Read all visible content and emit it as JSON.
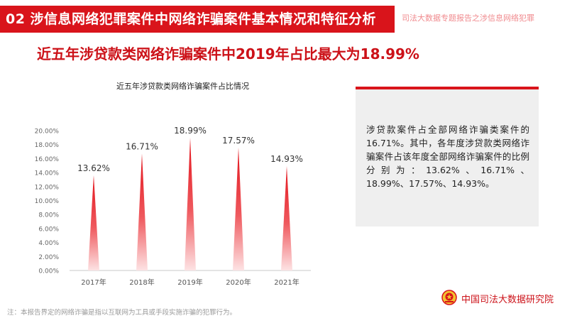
{
  "header": {
    "title": "02  涉信息网络犯罪案件中网络诈骗案件基本情况和特征分析",
    "subtitle": "司法大数据专题报告之涉信息网络犯罪"
  },
  "headline": "近五年涉贷款类网络诈骗案件中2019年占比最大为18.99%",
  "chart_data": {
    "type": "bar",
    "title": "近五年涉贷款类网络诈骗案件占比情况",
    "categories": [
      "2017年",
      "2018年",
      "2019年",
      "2020年",
      "2021年"
    ],
    "values": [
      13.62,
      16.71,
      18.99,
      17.57,
      14.93
    ],
    "data_labels": [
      "13.62%",
      "16.71%",
      "18.99%",
      "17.57%",
      "14.93%"
    ],
    "ylim": [
      0,
      20
    ],
    "yticks": [
      "0.00%",
      "2.00%",
      "4.00%",
      "6.00%",
      "8.00%",
      "10.00%",
      "12.00%",
      "14.00%",
      "16.00%",
      "18.00%",
      "20.00%"
    ],
    "grid": false,
    "bar_color": "#e3141c"
  },
  "info": {
    "text": "涉贷款案件占全部网络诈骗类案件的16.71%。其中，各年度涉贷款类网络诈骗案件占该年度全部网络诈骗案件的比例分别为：13.62%、16.71%、18.99%、17.57%、14.93%。"
  },
  "footer": {
    "org": "中国司法大数据研究院",
    "note": "注：本报告界定的网络诈骗是指以互联网为工具或手段实施诈骗的犯罪行为。"
  },
  "colors": {
    "accent": "#d9141b"
  },
  "icons": {
    "logo": "court-emblem-icon"
  }
}
